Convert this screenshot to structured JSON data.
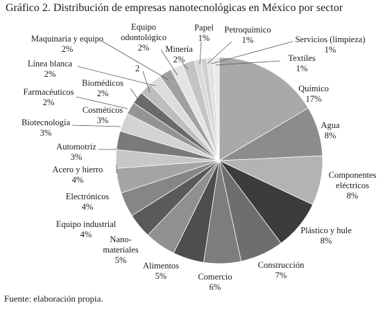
{
  "title": "Gráfico 2. Distribución de empresas nanotecnológicas en México por sector",
  "source": "Fuente: elaboración propia.",
  "chart_data": {
    "type": "pie",
    "title": "Gráfico 2. Distribución de empresas nanotecnológicas en México por sector",
    "unit": "%",
    "slices": [
      {
        "label": "Químico",
        "value": 17,
        "display": "17%",
        "color": "#a9a9a9"
      },
      {
        "label": "Agua",
        "value": 8,
        "display": "8%",
        "color": "#8c8c8c"
      },
      {
        "label": "Componentes eléctricos",
        "value": 8,
        "display": "8%",
        "color": "#b3b3b3"
      },
      {
        "label": "Plástico y hule",
        "value": 8,
        "display": "8%",
        "color": "#3c3c3c"
      },
      {
        "label": "Construcción",
        "value": 7,
        "display": "7%",
        "color": "#6e6e6e"
      },
      {
        "label": "Comercio",
        "value": 6,
        "display": "6%",
        "color": "#7d7d7d"
      },
      {
        "label": "Alimentos",
        "value": 5,
        "display": "5%",
        "color": "#4e4e4e"
      },
      {
        "label": "Nano-materiales",
        "value": 5,
        "display": "5%",
        "color": "#909090"
      },
      {
        "label": "Equipo industrial",
        "value": 4,
        "display": "4%",
        "color": "#5a5a5a"
      },
      {
        "label": "Electrónicos",
        "value": 4,
        "display": "4%",
        "color": "#868686"
      },
      {
        "label": "Acero y hierro",
        "value": 4,
        "display": "4%",
        "color": "#a4a4a4"
      },
      {
        "label": "Automotriz",
        "value": 3,
        "display": "3%",
        "color": "#c8c8c8"
      },
      {
        "label": "Biotecnología",
        "value": 3,
        "display": "3%",
        "color": "#7a7a7a"
      },
      {
        "label": "Cosméticos",
        "value": 3,
        "display": "3%",
        "color": "#d3d3d3"
      },
      {
        "label": "Farmacéuticos",
        "value": 2,
        "display": "2%",
        "color": "#949494"
      },
      {
        "label": "Biomédicos",
        "value": 2,
        "display": "2%",
        "color": "#6a6a6a"
      },
      {
        "label": "",
        "value": 2,
        "display": "2",
        "color": "#bdbdbd"
      },
      {
        "label": "Línea blanca",
        "value": 2,
        "display": "2%",
        "color": "#dcdcdc"
      },
      {
        "label": "Maquinaria y equipo",
        "value": 2,
        "display": "2%",
        "color": "#a0a0a0"
      },
      {
        "label": "Equipo odontológico",
        "value": 2,
        "display": "2%",
        "color": "#e4e4e4"
      },
      {
        "label": "Minería",
        "value": 2,
        "display": "2%",
        "color": "#c4c4c4"
      },
      {
        "label": "Papel",
        "value": 1,
        "display": "1%",
        "color": "#d9d9d9"
      },
      {
        "label": "Petroquímico",
        "value": 1,
        "display": "1%",
        "color": "#cfcfcf"
      },
      {
        "label": "Servicios (limpieza)",
        "value": 1,
        "display": "1%",
        "color": "#e2e2e2"
      },
      {
        "label": "Textiles",
        "value": 1,
        "display": "1%",
        "color": "#ebebeb"
      }
    ]
  }
}
